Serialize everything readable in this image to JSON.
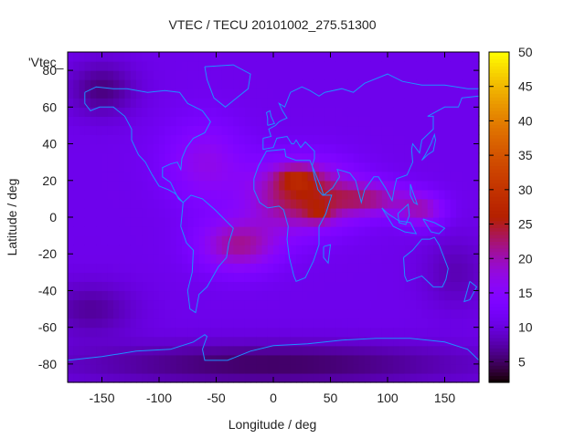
{
  "chart_data": {
    "type": "heatmap",
    "title": "VTEC / TECU 20101002_275.51300",
    "xlabel": "Longitude / deg",
    "ylabel": "Latitude / deg",
    "series_key": "'Vtec_",
    "xlim": [
      -180,
      180
    ],
    "ylim": [
      -90,
      90
    ],
    "x_ticks": [
      -150,
      -100,
      -50,
      0,
      50,
      100,
      150
    ],
    "x_tick_labels": [
      "-150",
      "-100",
      "-50",
      "0",
      "50",
      "100",
      "150"
    ],
    "y_ticks": [
      -80,
      -60,
      -40,
      -20,
      0,
      20,
      40,
      60,
      80
    ],
    "y_tick_labels": [
      "-80",
      "-60",
      "-40",
      "-20",
      "0",
      "20",
      "40",
      "60",
      "80"
    ],
    "colorbar": {
      "range": [
        2,
        50
      ],
      "ticks": [
        5,
        10,
        15,
        20,
        25,
        30,
        35,
        40,
        45,
        50
      ],
      "tick_labels": [
        "5",
        "10",
        "15",
        "20",
        "25",
        "30",
        "35",
        "40",
        "45",
        "50"
      ]
    },
    "grid": false,
    "field": {
      "background": 11,
      "components": [
        {
          "lon": 25,
          "lat": 12,
          "amp": 14,
          "slon": 45,
          "slat": 18
        },
        {
          "lon": 85,
          "lat": 10,
          "amp": 9,
          "slon": 35,
          "slat": 9
        },
        {
          "lon": 130,
          "lat": 4,
          "amp": 8,
          "slon": 20,
          "slat": 9
        },
        {
          "lon": -30,
          "lat": -15,
          "amp": 10,
          "slon": 35,
          "slat": 14
        },
        {
          "lon": 20,
          "lat": 22,
          "amp": 7,
          "slon": 18,
          "slat": 6
        },
        {
          "lon": 40,
          "lat": 2,
          "amp": 5,
          "slon": 12,
          "slat": 5
        },
        {
          "lon": -60,
          "lat": 30,
          "amp": 3,
          "slon": 40,
          "slat": 20
        },
        {
          "lon": -60,
          "lat": 30,
          "amp": 3,
          "slon": 30,
          "slat": 25
        },
        {
          "lon": -150,
          "lat": 70,
          "amp": -5,
          "slon": 30,
          "slat": 15
        },
        {
          "lon": 0,
          "lat": -80,
          "amp": -6,
          "slon": 180,
          "slat": 12
        },
        {
          "lon": -160,
          "lat": -50,
          "amp": -4,
          "slon": 40,
          "slat": 15
        },
        {
          "lon": 160,
          "lat": -30,
          "amp": -3,
          "slon": 30,
          "slat": 20
        }
      ]
    },
    "coastlines": [
      {
        "name": "north-america",
        "points": [
          [
            -165,
            68
          ],
          [
            -155,
            71
          ],
          [
            -140,
            70
          ],
          [
            -128,
            70
          ],
          [
            -110,
            68
          ],
          [
            -95,
            69
          ],
          [
            -82,
            68
          ],
          [
            -75,
            62
          ],
          [
            -62,
            58
          ],
          [
            -55,
            52
          ],
          [
            -60,
            46
          ],
          [
            -70,
            43
          ],
          [
            -76,
            38
          ],
          [
            -80,
            32
          ],
          [
            -81,
            26
          ],
          [
            -84,
            30
          ],
          [
            -90,
            29
          ],
          [
            -97,
            27
          ],
          [
            -97,
            22
          ],
          [
            -90,
            19
          ],
          [
            -87,
            15
          ],
          [
            -83,
            10
          ],
          [
            -79,
            8
          ],
          [
            -86,
            13
          ],
          [
            -92,
            15
          ],
          [
            -100,
            17
          ],
          [
            -106,
            23
          ],
          [
            -112,
            30
          ],
          [
            -118,
            34
          ],
          [
            -124,
            42
          ],
          [
            -124,
            48
          ],
          [
            -130,
            55
          ],
          [
            -140,
            60
          ],
          [
            -152,
            60
          ],
          [
            -160,
            58
          ],
          [
            -165,
            62
          ],
          [
            -165,
            68
          ]
        ]
      },
      {
        "name": "greenland",
        "points": [
          [
            -60,
            82
          ],
          [
            -35,
            83
          ],
          [
            -20,
            78
          ],
          [
            -22,
            70
          ],
          [
            -42,
            60
          ],
          [
            -52,
            65
          ],
          [
            -58,
            75
          ],
          [
            -60,
            82
          ]
        ]
      },
      {
        "name": "south-america",
        "points": [
          [
            -79,
            8
          ],
          [
            -72,
            12
          ],
          [
            -62,
            10
          ],
          [
            -51,
            4
          ],
          [
            -35,
            -6
          ],
          [
            -39,
            -14
          ],
          [
            -41,
            -22
          ],
          [
            -48,
            -27
          ],
          [
            -58,
            -38
          ],
          [
            -65,
            -42
          ],
          [
            -68,
            -52
          ],
          [
            -73,
            -50
          ],
          [
            -75,
            -40
          ],
          [
            -71,
            -30
          ],
          [
            -70,
            -18
          ],
          [
            -76,
            -14
          ],
          [
            -81,
            -5
          ],
          [
            -80,
            1
          ],
          [
            -79,
            8
          ]
        ]
      },
      {
        "name": "eurasia",
        "points": [
          [
            -9,
            43
          ],
          [
            -9,
            37
          ],
          [
            0,
            38
          ],
          [
            3,
            43
          ],
          [
            12,
            44
          ],
          [
            16,
            40
          ],
          [
            18,
            40
          ],
          [
            20,
            42
          ],
          [
            24,
            38
          ],
          [
            28,
            41
          ],
          [
            36,
            36
          ],
          [
            36,
            32
          ],
          [
            34,
            28
          ],
          [
            42,
            16
          ],
          [
            44,
            12
          ],
          [
            52,
            16
          ],
          [
            58,
            22
          ],
          [
            56,
            26
          ],
          [
            62,
            25
          ],
          [
            67,
            24
          ],
          [
            72,
            20
          ],
          [
            77,
            8
          ],
          [
            80,
            15
          ],
          [
            88,
            22
          ],
          [
            92,
            22
          ],
          [
            98,
            16
          ],
          [
            104,
            9
          ],
          [
            106,
            16
          ],
          [
            108,
            21
          ],
          [
            117,
            23
          ],
          [
            122,
            30
          ],
          [
            121,
            37
          ],
          [
            122,
            40
          ],
          [
            128,
            35
          ],
          [
            130,
            42
          ],
          [
            140,
            48
          ],
          [
            140,
            55
          ],
          [
            135,
            55
          ],
          [
            150,
            60
          ],
          [
            162,
            60
          ],
          [
            165,
            65
          ],
          [
            180,
            66
          ],
          [
            180,
            70
          ],
          [
            170,
            70
          ],
          [
            150,
            72
          ],
          [
            130,
            72
          ],
          [
            113,
            74
          ],
          [
            100,
            78
          ],
          [
            80,
            73
          ],
          [
            70,
            68
          ],
          [
            60,
            70
          ],
          [
            45,
            68
          ],
          [
            40,
            66
          ],
          [
            32,
            69
          ],
          [
            25,
            71
          ],
          [
            15,
            68
          ],
          [
            10,
            60
          ],
          [
            5,
            62
          ],
          [
            8,
            58
          ],
          [
            10,
            56
          ],
          [
            12,
            54
          ],
          [
            8,
            53
          ],
          [
            5,
            52
          ],
          [
            2,
            50
          ],
          [
            -4,
            48
          ],
          [
            -2,
            44
          ],
          [
            -9,
            43
          ]
        ]
      },
      {
        "name": "africa",
        "points": [
          [
            -17,
            21
          ],
          [
            -13,
            28
          ],
          [
            -6,
            36
          ],
          [
            10,
            37
          ],
          [
            11,
            33
          ],
          [
            20,
            31
          ],
          [
            32,
            31
          ],
          [
            34,
            28
          ],
          [
            36,
            22
          ],
          [
            39,
            15
          ],
          [
            43,
            12
          ],
          [
            51,
            12
          ],
          [
            46,
            2
          ],
          [
            40,
            -5
          ],
          [
            40,
            -15
          ],
          [
            35,
            -24
          ],
          [
            28,
            -33
          ],
          [
            20,
            -35
          ],
          [
            18,
            -32
          ],
          [
            14,
            -22
          ],
          [
            12,
            -12
          ],
          [
            13,
            -5
          ],
          [
            9,
            4
          ],
          [
            5,
            6
          ],
          [
            -5,
            5
          ],
          [
            -12,
            8
          ],
          [
            -17,
            15
          ],
          [
            -17,
            21
          ]
        ]
      },
      {
        "name": "madagascar",
        "points": [
          [
            44,
            -16
          ],
          [
            50,
            -15
          ],
          [
            48,
            -25
          ],
          [
            44,
            -22
          ],
          [
            44,
            -16
          ]
        ]
      },
      {
        "name": "uk",
        "points": [
          [
            -5,
            50
          ],
          [
            1,
            51
          ],
          [
            -2,
            55
          ],
          [
            -3,
            58
          ],
          [
            -6,
            57
          ],
          [
            -5,
            54
          ],
          [
            -5,
            50
          ]
        ]
      },
      {
        "name": "japan",
        "points": [
          [
            130,
            31
          ],
          [
            135,
            34
          ],
          [
            140,
            36
          ],
          [
            142,
            42
          ],
          [
            141,
            45
          ],
          [
            138,
            40
          ],
          [
            133,
            34
          ],
          [
            130,
            31
          ]
        ]
      },
      {
        "name": "indonesia",
        "points": [
          [
            95,
            5
          ],
          [
            105,
            -5
          ],
          [
            115,
            -8
          ],
          [
            125,
            -9
          ],
          [
            120,
            -3
          ],
          [
            110,
            -2
          ],
          [
            100,
            2
          ],
          [
            95,
            5
          ]
        ]
      },
      {
        "name": "borneo",
        "points": [
          [
            109,
            2
          ],
          [
            118,
            7
          ],
          [
            119,
            1
          ],
          [
            116,
            -4
          ],
          [
            110,
            -3
          ],
          [
            109,
            2
          ]
        ]
      },
      {
        "name": "new-guinea",
        "points": [
          [
            131,
            -1
          ],
          [
            141,
            -3
          ],
          [
            150,
            -6
          ],
          [
            145,
            -9
          ],
          [
            138,
            -8
          ],
          [
            131,
            -1
          ]
        ]
      },
      {
        "name": "philippines",
        "points": [
          [
            120,
            18
          ],
          [
            122,
            14
          ],
          [
            126,
            7
          ],
          [
            123,
            8
          ],
          [
            120,
            12
          ],
          [
            120,
            18
          ]
        ]
      },
      {
        "name": "australia",
        "points": [
          [
            114,
            -22
          ],
          [
            122,
            -18
          ],
          [
            130,
            -12
          ],
          [
            137,
            -12
          ],
          [
            141,
            -11
          ],
          [
            145,
            -15
          ],
          [
            150,
            -23
          ],
          [
            153,
            -28
          ],
          [
            151,
            -34
          ],
          [
            148,
            -38
          ],
          [
            140,
            -38
          ],
          [
            135,
            -35
          ],
          [
            130,
            -32
          ],
          [
            117,
            -35
          ],
          [
            115,
            -32
          ],
          [
            114,
            -22
          ]
        ]
      },
      {
        "name": "new-zealand",
        "points": [
          [
            172,
            -35
          ],
          [
            178,
            -38
          ],
          [
            172,
            -45
          ],
          [
            167,
            -46
          ],
          [
            172,
            -35
          ]
        ]
      },
      {
        "name": "antarctica",
        "points": [
          [
            -180,
            -78
          ],
          [
            -150,
            -76
          ],
          [
            -120,
            -73
          ],
          [
            -90,
            -72
          ],
          [
            -70,
            -68
          ],
          [
            -60,
            -64
          ],
          [
            -58,
            -65
          ],
          [
            -62,
            -72
          ],
          [
            -60,
            -78
          ],
          [
            -40,
            -78
          ],
          [
            -20,
            -73
          ],
          [
            0,
            -70
          ],
          [
            30,
            -69
          ],
          [
            60,
            -67
          ],
          [
            90,
            -66
          ],
          [
            120,
            -66
          ],
          [
            150,
            -68
          ],
          [
            170,
            -72
          ],
          [
            180,
            -78
          ]
        ]
      }
    ]
  }
}
